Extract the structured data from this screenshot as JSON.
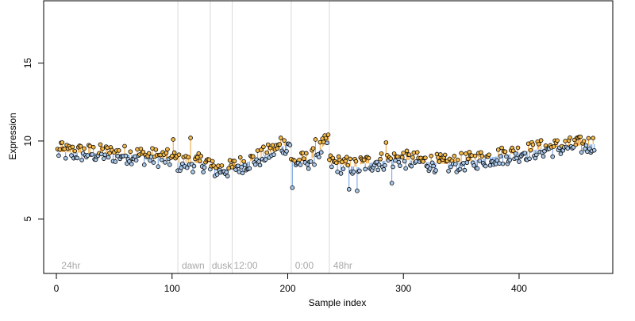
{
  "chart_data": {
    "type": "scatter",
    "title": "",
    "xlabel": "Sample index",
    "ylabel": "Expression",
    "xlim": [
      -11,
      481
    ],
    "ylim": [
      1.5,
      19.0
    ],
    "x_ticks": [
      0,
      100,
      200,
      300,
      400
    ],
    "y_ticks": [
      5,
      10,
      15
    ],
    "grid": false,
    "baseline_description": "segment from each point to a smoothed local mean; orange when point is above, blue when below",
    "colors": {
      "point_fill_above": "#f5b94a",
      "point_fill_below": "#a9c8ea",
      "line_above": "#f0a030",
      "line_below": "#6f9ee0",
      "separator": "#d9d9d9",
      "annotation_text": "#a8a8a8",
      "axis": "#000000"
    },
    "annotations": [
      {
        "label": "24hr",
        "x": 3,
        "y": 2.0
      },
      {
        "label": "dawn",
        "x": 107,
        "y": 2.0
      },
      {
        "label": "dusk",
        "x": 133,
        "y": 2.0
      },
      {
        "label": "12:00",
        "x": 152,
        "y": 2.0
      },
      {
        "label": "0:00",
        "x": 205,
        "y": 2.0
      },
      {
        "label": "48hr",
        "x": 238,
        "y": 2.0
      }
    ],
    "separators": [
      105,
      133,
      152,
      203,
      236
    ],
    "n_points": 465,
    "series_segments": [
      {
        "x_start": 1,
        "x_end": 40,
        "y_start": 9.3,
        "y_end": 9.2
      },
      {
        "x_start": 40,
        "x_end": 70,
        "y_start": 9.2,
        "y_end": 9.1
      },
      {
        "x_start": 70,
        "x_end": 104,
        "y_start": 9.1,
        "y_end": 8.8
      },
      {
        "x_start": 105,
        "x_end": 132,
        "y_start": 8.6,
        "y_end": 8.6
      },
      {
        "x_start": 133,
        "x_end": 151,
        "y_start": 8.2,
        "y_end": 8.2
      },
      {
        "x_start": 152,
        "x_end": 175,
        "y_start": 8.3,
        "y_end": 8.9
      },
      {
        "x_start": 175,
        "x_end": 202,
        "y_start": 8.9,
        "y_end": 9.9
      },
      {
        "x_start": 203,
        "x_end": 220,
        "y_start": 8.6,
        "y_end": 8.8
      },
      {
        "x_start": 220,
        "x_end": 235,
        "y_start": 8.8,
        "y_end": 10.0
      },
      {
        "x_start": 236,
        "x_end": 262,
        "y_start": 8.6,
        "y_end": 8.3
      },
      {
        "x_start": 262,
        "x_end": 300,
        "y_start": 8.5,
        "y_end": 8.9
      },
      {
        "x_start": 300,
        "x_end": 340,
        "y_start": 8.8,
        "y_end": 8.5
      },
      {
        "x_start": 340,
        "x_end": 380,
        "y_start": 8.5,
        "y_end": 9.0
      },
      {
        "x_start": 380,
        "x_end": 420,
        "y_start": 9.0,
        "y_end": 9.5
      },
      {
        "x_start": 420,
        "x_end": 465,
        "y_start": 9.5,
        "y_end": 9.8
      }
    ],
    "notable_points": [
      {
        "x": 5,
        "y": 9.9
      },
      {
        "x": 101,
        "y": 10.1
      },
      {
        "x": 116,
        "y": 10.2
      },
      {
        "x": 194,
        "y": 10.2
      },
      {
        "x": 204,
        "y": 7.0
      },
      {
        "x": 224,
        "y": 10.1
      },
      {
        "x": 235,
        "y": 10.4
      },
      {
        "x": 253,
        "y": 6.9
      },
      {
        "x": 260,
        "y": 6.8
      },
      {
        "x": 285,
        "y": 9.9
      },
      {
        "x": 290,
        "y": 7.3
      },
      {
        "x": 450,
        "y": 10.2
      }
    ]
  }
}
